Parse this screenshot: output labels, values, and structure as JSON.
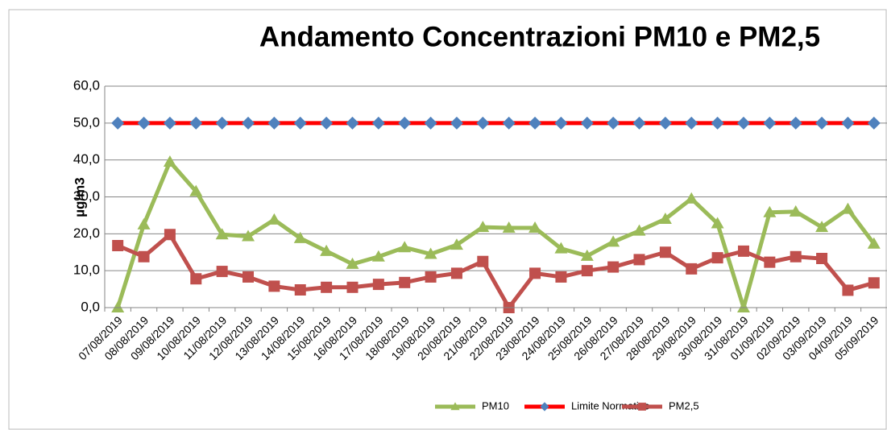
{
  "chart_data": {
    "type": "line",
    "title": "Andamento Concentrazioni PM10 e PM2,5",
    "y_label": "µg/m3",
    "categories": [
      "07/08/2019",
      "08/08/2019",
      "09/08/2019",
      "10/08/2019",
      "11/08/2019",
      "12/08/2019",
      "13/08/2019",
      "14/08/2019",
      "15/08/2019",
      "16/08/2019",
      "17/08/2019",
      "18/08/2019",
      "19/08/2019",
      "20/08/2019",
      "21/08/2019",
      "22/08/2019",
      "23/08/2019",
      "24/08/2019",
      "25/08/2019",
      "26/08/2019",
      "27/08/2019",
      "28/08/2019",
      "29/08/2019",
      "30/08/2019",
      "31/08/2019",
      "01/09/2019",
      "02/09/2019",
      "03/09/2019",
      "04/09/2019",
      "05/09/2019"
    ],
    "series": [
      {
        "name": "PM10",
        "color": "#9bbb59",
        "marker": "triangle",
        "marker_color": "#9bbb59",
        "values": [
          0,
          22.5,
          39.5,
          31.5,
          19.8,
          19.3,
          23.8,
          18.8,
          15.3,
          11.8,
          13.8,
          16.3,
          14.5,
          17.0,
          21.8,
          21.6,
          21.6,
          16.0,
          14.0,
          17.8,
          20.8,
          24.0,
          29.5,
          22.8,
          0,
          25.8,
          26.0,
          21.8,
          26.7,
          17.3
        ]
      },
      {
        "name": "Limite Normativo",
        "color": "#ff0000",
        "marker": "diamond",
        "marker_color": "#4f81bd",
        "values": [
          50,
          50,
          50,
          50,
          50,
          50,
          50,
          50,
          50,
          50,
          50,
          50,
          50,
          50,
          50,
          50,
          50,
          50,
          50,
          50,
          50,
          50,
          50,
          50,
          50,
          50,
          50,
          50,
          50,
          50
        ]
      },
      {
        "name": "PM2,5",
        "color": "#c0504d",
        "marker": "square",
        "marker_color": "#c0504d",
        "values": [
          16.8,
          13.8,
          19.8,
          7.8,
          9.8,
          8.3,
          5.8,
          4.8,
          5.5,
          5.5,
          6.3,
          6.8,
          8.3,
          9.3,
          12.5,
          0,
          9.3,
          8.3,
          10.0,
          11.0,
          13.0,
          15.0,
          10.5,
          13.5,
          15.3,
          12.3,
          13.8,
          13.3,
          4.7,
          6.7
        ]
      }
    ],
    "ylim": [
      0,
      60
    ],
    "yticks": [
      {
        "value": 0,
        "label": "0,0"
      },
      {
        "value": 10,
        "label": "10,0"
      },
      {
        "value": 20,
        "label": "20,0"
      },
      {
        "value": 30,
        "label": "30,0"
      },
      {
        "value": 40,
        "label": "40,0"
      },
      {
        "value": 50,
        "label": "50,0"
      },
      {
        "value": 60,
        "label": "60,0"
      }
    ],
    "grid": true,
    "legend": "bottom"
  }
}
